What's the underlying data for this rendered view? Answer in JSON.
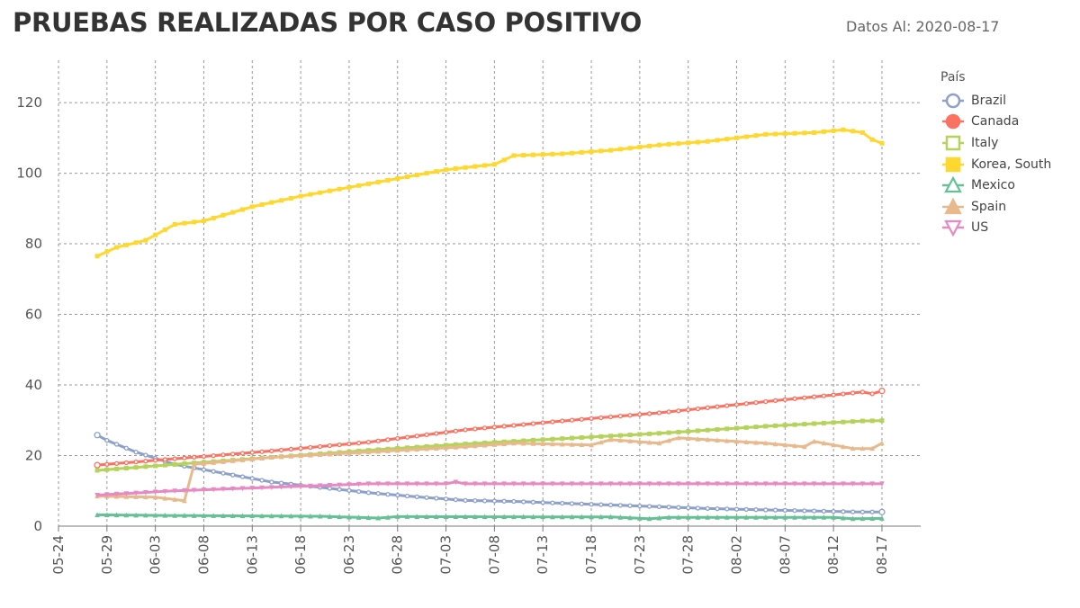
{
  "header": {
    "title": "PRUEBAS REALIZADAS POR CASO POSITIVO",
    "date_label": "Datos Al:",
    "date_value": "2020-08-17"
  },
  "chart_data": {
    "type": "line",
    "title": "PRUEBAS REALIZADAS POR CASO POSITIVO",
    "xlabel": "",
    "ylabel": "",
    "ylim": [
      0,
      132
    ],
    "xlim": [
      "2020-05-24",
      "2020-08-21"
    ],
    "x_ticks": [
      "05-24",
      "05-29",
      "06-03",
      "06-08",
      "06-13",
      "06-18",
      "06-23",
      "06-28",
      "07-03",
      "07-08",
      "07-13",
      "07-18",
      "07-23",
      "07-28",
      "08-02",
      "08-07",
      "08-12",
      "08-17"
    ],
    "y_ticks": [
      0,
      20,
      40,
      60,
      80,
      100,
      120
    ],
    "grid": true,
    "legend_title": "País",
    "legend_position": "right",
    "series": [
      {
        "name": "Brazil",
        "color": "#8da0cb",
        "marker": "circle",
        "points": [
          [
            "05-28",
            25.8
          ],
          [
            "05-29",
            24.3
          ],
          [
            "06-01",
            21
          ],
          [
            "06-05",
            17.5
          ],
          [
            "06-10",
            15
          ],
          [
            "06-15",
            12.5
          ],
          [
            "06-20",
            11
          ],
          [
            "06-25",
            9.5
          ],
          [
            "06-30",
            8.3
          ],
          [
            "07-05",
            7.3
          ],
          [
            "07-10",
            7
          ],
          [
            "07-15",
            6.5
          ],
          [
            "07-20",
            6
          ],
          [
            "07-25",
            5.5
          ],
          [
            "07-30",
            5
          ],
          [
            "08-05",
            4.6
          ],
          [
            "08-10",
            4.3
          ],
          [
            "08-15",
            4
          ],
          [
            "08-17",
            4
          ]
        ]
      },
      {
        "name": "Canada",
        "color": "#fc7160",
        "marker": "circle",
        "points": [
          [
            "05-28",
            17.3
          ],
          [
            "06-05",
            19.1
          ],
          [
            "06-15",
            21.3
          ],
          [
            "06-25",
            23.8
          ],
          [
            "07-05",
            27.3
          ],
          [
            "07-15",
            29.8
          ],
          [
            "07-25",
            32.1
          ],
          [
            "08-05",
            35.3
          ],
          [
            "08-15",
            38
          ],
          [
            "08-16",
            37.5
          ],
          [
            "08-17",
            38.3
          ]
        ]
      },
      {
        "name": "Italy",
        "color": "#b5d35a",
        "marker": "square",
        "points": [
          [
            "05-28",
            15.8
          ],
          [
            "06-05",
            17.5
          ],
          [
            "06-15",
            19.5
          ],
          [
            "06-25",
            21.5
          ],
          [
            "07-05",
            23.3
          ],
          [
            "07-15",
            24.8
          ],
          [
            "07-25",
            26.3
          ],
          [
            "08-05",
            28.3
          ],
          [
            "08-15",
            29.8
          ],
          [
            "08-17",
            29.9
          ]
        ]
      },
      {
        "name": "Korea, South",
        "color": "#fed82f",
        "marker": "square",
        "points": [
          [
            "05-28",
            76.5
          ],
          [
            "05-30",
            79
          ],
          [
            "06-02",
            81
          ],
          [
            "06-05",
            85.5
          ],
          [
            "06-08",
            86.5
          ],
          [
            "06-13",
            90.5
          ],
          [
            "06-18",
            93.5
          ],
          [
            "06-23",
            96
          ],
          [
            "06-28",
            98.5
          ],
          [
            "07-03",
            101
          ],
          [
            "07-08",
            102.5
          ],
          [
            "07-10",
            105
          ],
          [
            "07-15",
            105.5
          ],
          [
            "07-20",
            106.5
          ],
          [
            "07-25",
            108
          ],
          [
            "07-30",
            109
          ],
          [
            "08-05",
            111
          ],
          [
            "08-10",
            111.5
          ],
          [
            "08-13",
            112.3
          ],
          [
            "08-15",
            111.5
          ],
          [
            "08-16",
            109.5
          ],
          [
            "08-17",
            108.5
          ]
        ]
      },
      {
        "name": "Mexico",
        "color": "#66c095",
        "marker": "triangle",
        "points": [
          [
            "05-28",
            3.2
          ],
          [
            "06-05",
            3
          ],
          [
            "06-20",
            2.8
          ],
          [
            "06-26",
            2.3
          ],
          [
            "06-28",
            2.7
          ],
          [
            "07-20",
            2.6
          ],
          [
            "07-24",
            2.1
          ],
          [
            "07-26",
            2.5
          ],
          [
            "08-12",
            2.5
          ],
          [
            "08-14",
            2.1
          ],
          [
            "08-17",
            2.2
          ]
        ]
      },
      {
        "name": "Spain",
        "color": "#e8b98c",
        "marker": "triangle",
        "points": [
          [
            "05-28",
            8.5
          ],
          [
            "06-03",
            8.2
          ],
          [
            "06-06",
            7.2
          ],
          [
            "06-07",
            17.5
          ],
          [
            "06-15",
            19.5
          ],
          [
            "06-25",
            21
          ],
          [
            "07-05",
            22.5
          ],
          [
            "07-10",
            23.5
          ],
          [
            "07-18",
            23
          ],
          [
            "07-20",
            24.5
          ],
          [
            "07-25",
            23.5
          ],
          [
            "07-27",
            25
          ],
          [
            "08-05",
            23.5
          ],
          [
            "08-09",
            22.5
          ],
          [
            "08-10",
            24
          ],
          [
            "08-14",
            22
          ],
          [
            "08-16",
            22
          ],
          [
            "08-17",
            23.5
          ]
        ]
      },
      {
        "name": "US",
        "color": "#e78ac3",
        "marker": "triangle-down",
        "points": [
          [
            "05-28",
            8.8
          ],
          [
            "06-05",
            10
          ],
          [
            "06-15",
            11
          ],
          [
            "06-20",
            11.5
          ],
          [
            "06-25",
            12
          ],
          [
            "07-03",
            12
          ],
          [
            "07-04",
            12.5
          ],
          [
            "07-05",
            12
          ],
          [
            "08-17",
            12
          ]
        ]
      }
    ]
  }
}
